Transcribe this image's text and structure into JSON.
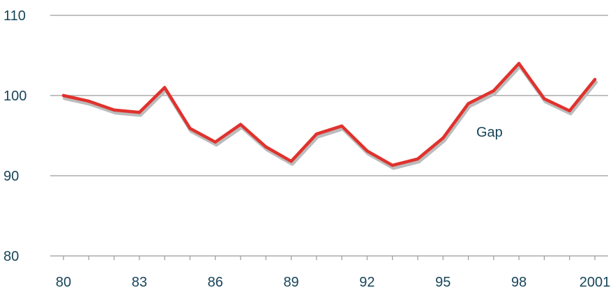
{
  "chart_data": {
    "type": "line",
    "title": "",
    "xlabel": "",
    "ylabel": "",
    "x": [
      1980,
      1981,
      1982,
      1983,
      1984,
      1985,
      1986,
      1987,
      1988,
      1989,
      1990,
      1991,
      1992,
      1993,
      1994,
      1995,
      1996,
      1997,
      1998,
      1999,
      2000,
      2001
    ],
    "series": [
      {
        "name": "Gap",
        "values": [
          100.0,
          99.3,
          98.2,
          97.9,
          101.0,
          95.9,
          94.2,
          96.4,
          93.6,
          91.8,
          95.2,
          96.2,
          93.1,
          91.3,
          92.1,
          94.7,
          99.0,
          100.6,
          104.0,
          99.6,
          98.1,
          102.0
        ]
      }
    ],
    "ylim": [
      80,
      110
    ],
    "xlim": [
      1980,
      2001
    ],
    "y_ticks": [
      80,
      90,
      100,
      110
    ],
    "x_ticks": [
      1980,
      1983,
      1986,
      1989,
      1992,
      1995,
      1998,
      2001
    ],
    "x_tick_labels": [
      "80",
      "83",
      "86",
      "89",
      "92",
      "95",
      "98",
      "2001"
    ],
    "grid": "horizontal",
    "colors": {
      "line": "#e0322d",
      "shadow": "#bcbcbc",
      "grid": "#9a9a9a",
      "text": "#17455a"
    }
  }
}
